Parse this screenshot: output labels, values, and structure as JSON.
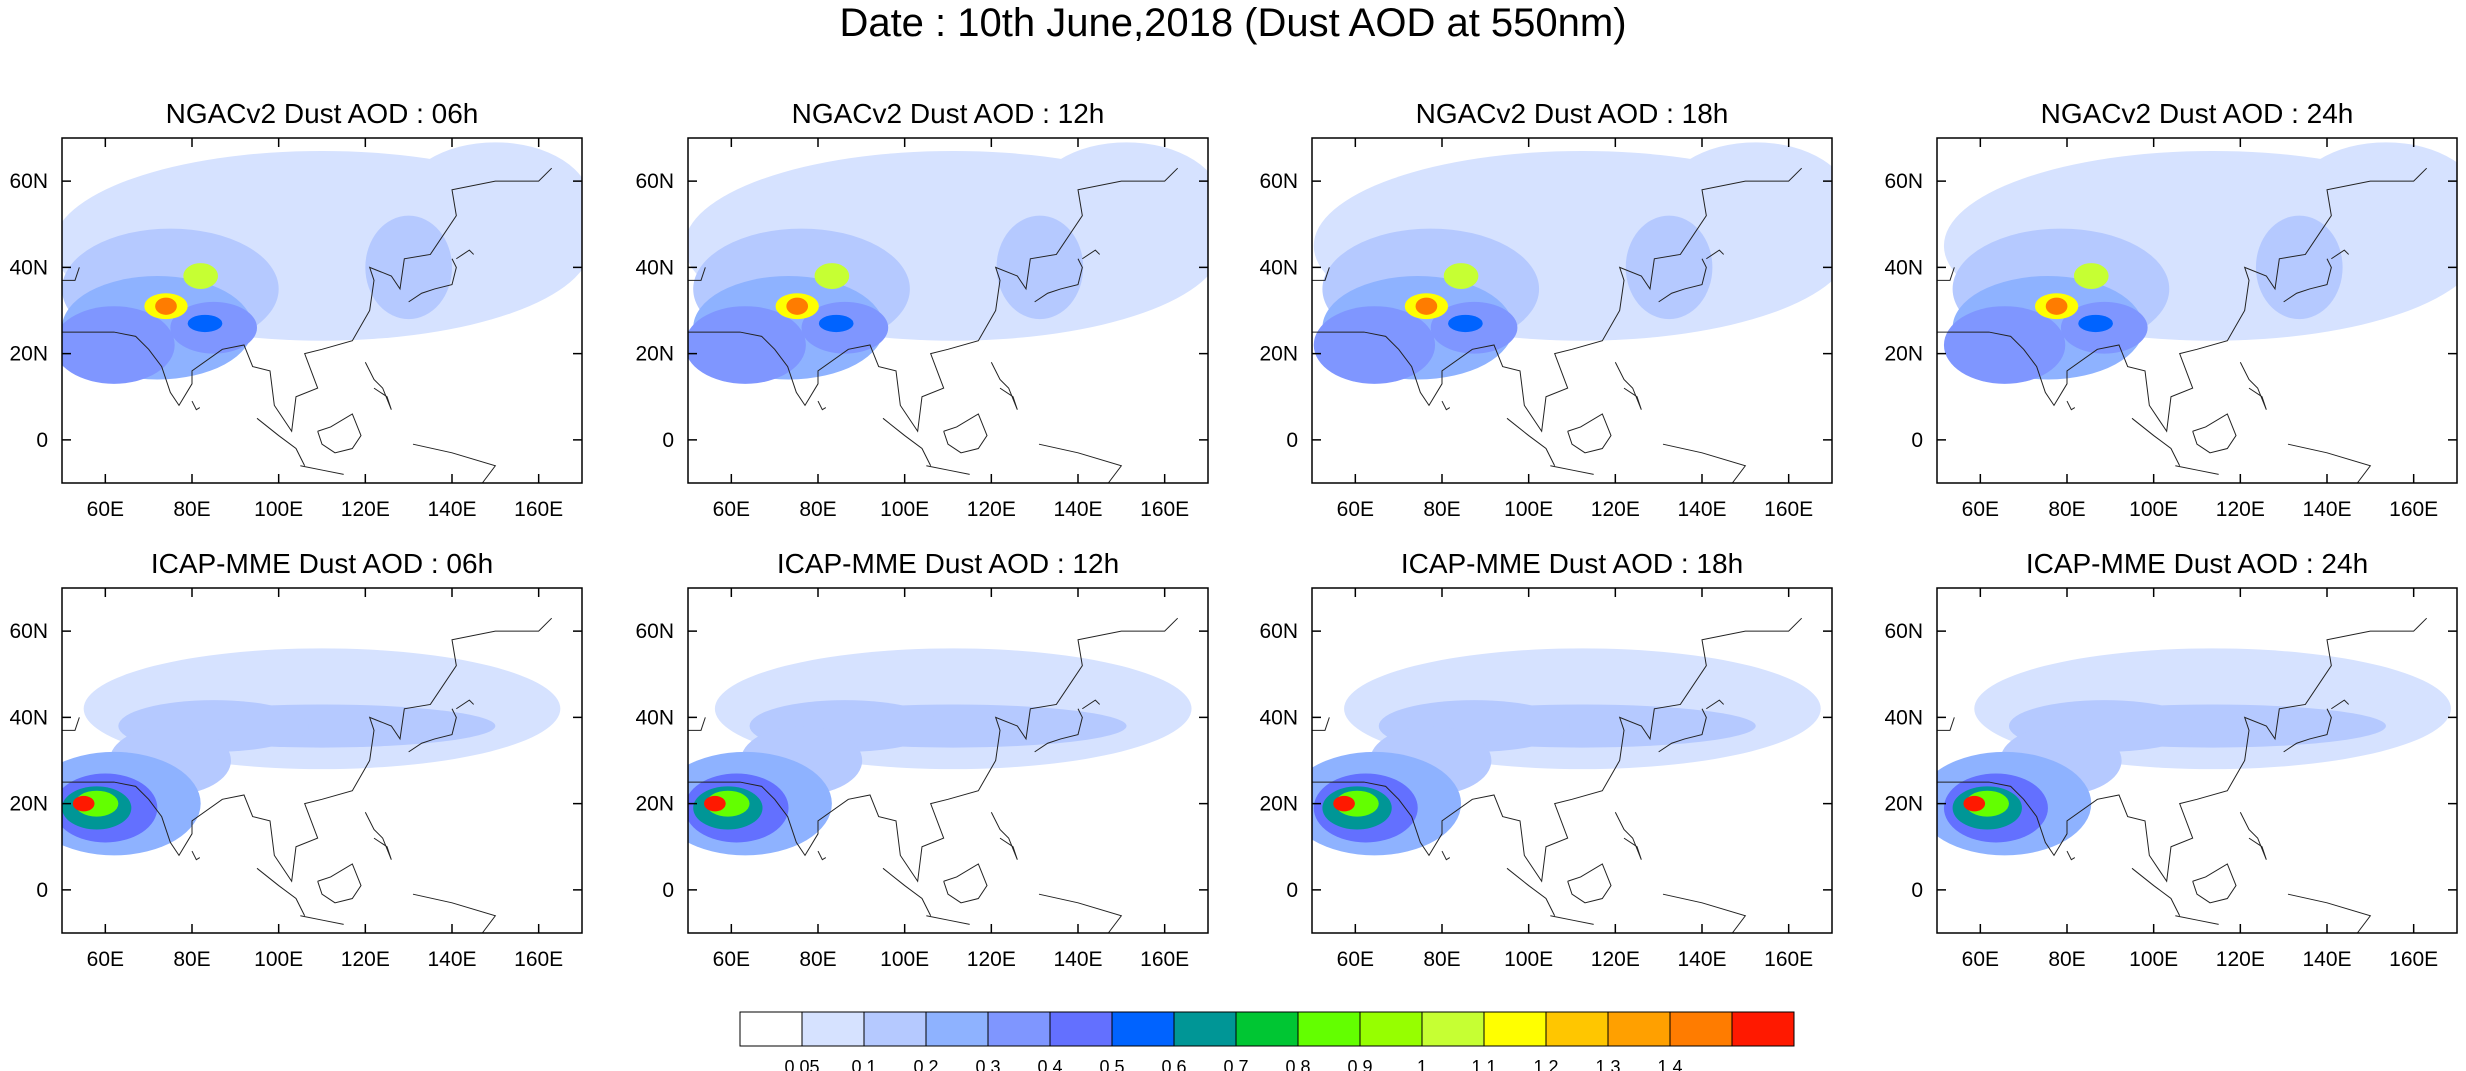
{
  "title": "Date : 10th June,2018 (Dust AOD at 550nm)",
  "panels": [
    {
      "title": "NGACv2 Dust AOD : 06h",
      "model": "NGACv2"
    },
    {
      "title": "NGACv2 Dust AOD : 12h",
      "model": "NGACv2"
    },
    {
      "title": "NGACv2 Dust AOD : 18h",
      "model": "NGACv2"
    },
    {
      "title": "NGACv2 Dust AOD : 24h",
      "model": "NGACv2"
    },
    {
      "title": "ICAP-MME Dust AOD : 06h",
      "model": "ICAP-MME"
    },
    {
      "title": "ICAP-MME Dust AOD : 12h",
      "model": "ICAP-MME"
    },
    {
      "title": "ICAP-MME Dust AOD : 18h",
      "model": "ICAP-MME"
    },
    {
      "title": "ICAP-MME Dust AOD : 24h",
      "model": "ICAP-MME"
    }
  ],
  "map_extent": {
    "lon_min": 50,
    "lon_max": 170,
    "lat_min": -10,
    "lat_max": 70
  },
  "lon_ticks": [
    {
      "value": 60,
      "label": "60E"
    },
    {
      "value": 80,
      "label": "80E"
    },
    {
      "value": 100,
      "label": "100E"
    },
    {
      "value": 120,
      "label": "120E"
    },
    {
      "value": 140,
      "label": "140E"
    },
    {
      "value": 160,
      "label": "160E"
    }
  ],
  "lat_ticks": [
    {
      "value": 0,
      "label": "0"
    },
    {
      "value": 20,
      "label": "20N"
    },
    {
      "value": 40,
      "label": "40N"
    },
    {
      "value": 60,
      "label": "60N"
    }
  ],
  "colorbar": {
    "colors": [
      "#ffffff",
      "#d6e2ff",
      "#b5c9ff",
      "#8eb2ff",
      "#7f96ff",
      "#6370ff",
      "#0063ff",
      "#009696",
      "#00c633",
      "#63ff00",
      "#96ff00",
      "#c6ff33",
      "#ffff00",
      "#ffc600",
      "#ffa000",
      "#ff7c00",
      "#ff1900"
    ],
    "labels": [
      "0.05",
      "0.1",
      "0.2",
      "0.3",
      "0.4",
      "0.5",
      "0.6",
      "0.7",
      "0.8",
      "0.9",
      "1",
      "1.1",
      "1.2",
      "1.3",
      "1.4"
    ]
  }
}
